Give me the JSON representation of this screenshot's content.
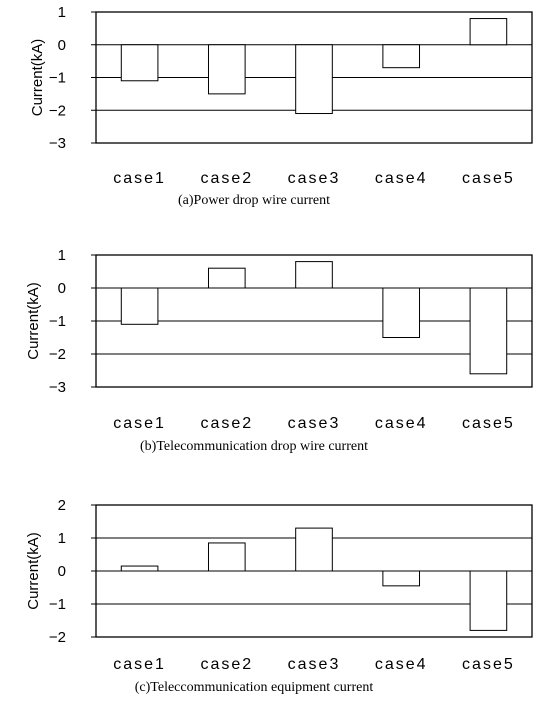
{
  "chart_data": [
    {
      "type": "bar",
      "caption": "(a)Power drop wire current",
      "ylabel": "Current(kA)",
      "categories": [
        "case1",
        "case2",
        "case3",
        "case4",
        "case5"
      ],
      "values": [
        -1.1,
        -1.5,
        -2.1,
        -0.7,
        0.8
      ],
      "ylim": [
        -3,
        1
      ],
      "yticks": [
        "1",
        "0",
        "−1",
        "−2",
        "−3"
      ],
      "ytick_values": [
        1,
        0,
        -1,
        -2,
        -3
      ],
      "grid": true,
      "bar_color": "#ffffff",
      "legend": "none"
    },
    {
      "type": "bar",
      "caption": "(b)Telecommunication drop wire current",
      "ylabel": "Current(kA)",
      "categories": [
        "case1",
        "case2",
        "case3",
        "case4",
        "case5"
      ],
      "values": [
        -1.1,
        0.6,
        0.8,
        -1.5,
        -2.6
      ],
      "ylim": [
        -3,
        1
      ],
      "yticks": [
        "1",
        "0",
        "−1",
        "−2",
        "−3"
      ],
      "ytick_values": [
        1,
        0,
        -1,
        -2,
        -3
      ],
      "grid": true,
      "bar_color": "#ffffff",
      "legend": "none"
    },
    {
      "type": "bar",
      "caption": "(c)Teleccommunication equipment current",
      "ylabel": "Current(kA)",
      "categories": [
        "case1",
        "case2",
        "case3",
        "case4",
        "case5"
      ],
      "values": [
        0.15,
        0.85,
        1.3,
        -0.45,
        -1.8
      ],
      "ylim": [
        -2,
        2
      ],
      "yticks": [
        "2",
        "1",
        "0",
        "−1",
        "−2"
      ],
      "ytick_values": [
        2,
        1,
        0,
        -1,
        -2
      ],
      "grid": true,
      "bar_color": "#ffffff",
      "legend": "none"
    }
  ]
}
